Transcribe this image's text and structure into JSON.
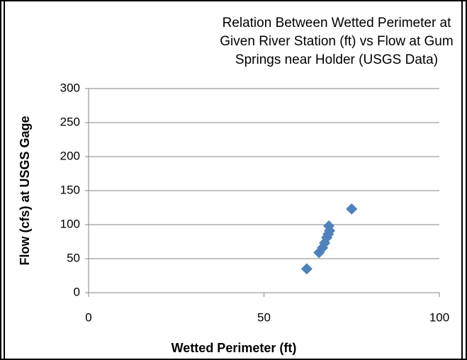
{
  "chart_data": {
    "type": "scatter",
    "title": "Relation Between Wetted Perimeter at Given River Station (ft) vs Flow at Gum Springs near Holder (USGS Data)",
    "x_label": "Wetted Perimeter (ft)",
    "y_label": "Flow (cfs) at USGS Gage",
    "series": [
      {
        "name": "Flow",
        "color": "#4f81bd",
        "x": [
          62.2,
          65.7,
          66.7,
          67.3,
          67.9,
          68.3,
          68.7,
          68.5,
          75.0
        ],
        "values": [
          35,
          59,
          66,
          73,
          81,
          86,
          91,
          98,
          123
        ]
      }
    ],
    "xlim": [
      0,
      100
    ],
    "xticks": [
      0,
      50,
      100
    ],
    "ylim": [
      0,
      300
    ],
    "yticks": [
      0,
      50,
      100,
      150,
      200,
      250,
      300
    ],
    "grid": true
  }
}
